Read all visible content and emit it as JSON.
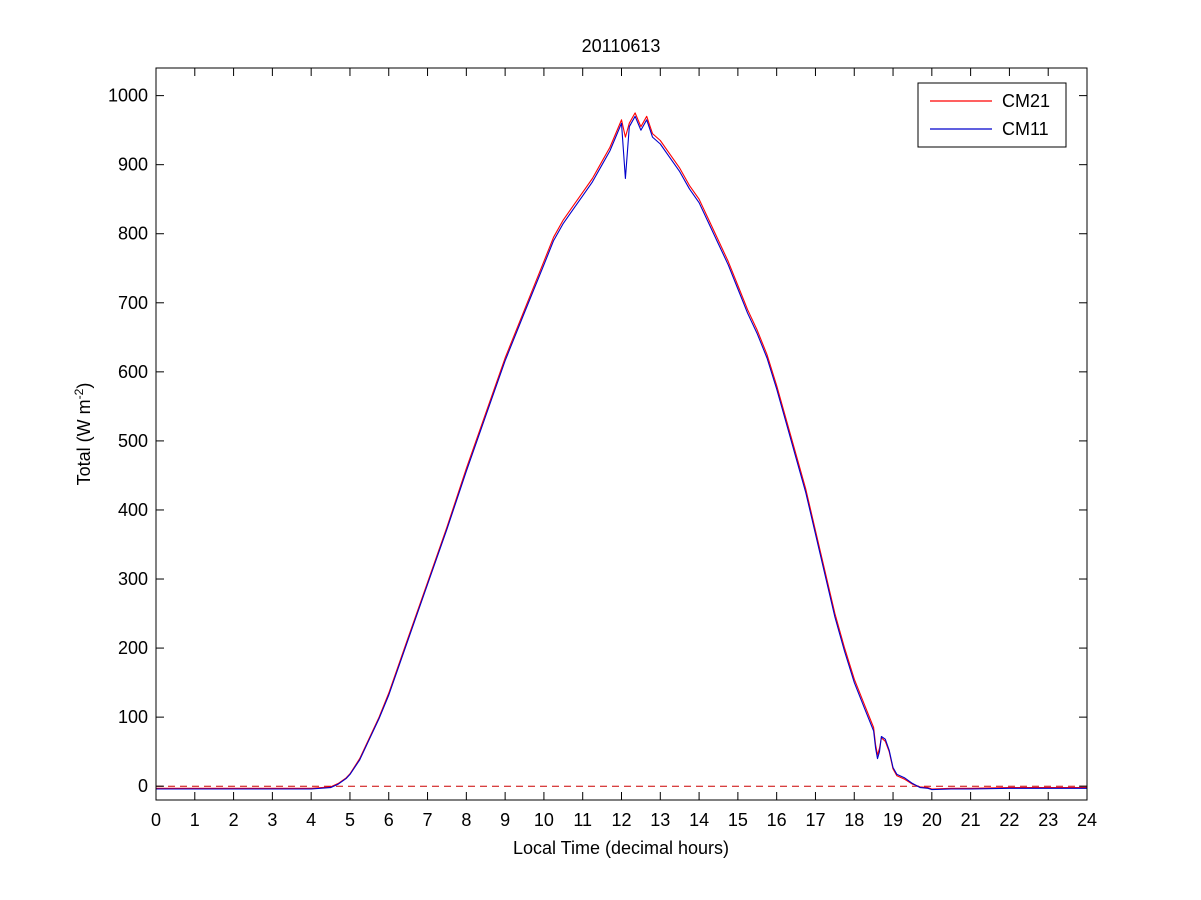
{
  "chart_data": {
    "type": "line",
    "title": "20110613",
    "xlabel": "Local Time (decimal hours)",
    "ylabel": {
      "base": "Total (W m",
      "sup": "-2",
      "close": ")"
    },
    "xlim": [
      0,
      24
    ],
    "ylim": [
      -20,
      1040
    ],
    "xticks": [
      0,
      1,
      2,
      3,
      4,
      5,
      6,
      7,
      8,
      9,
      10,
      11,
      12,
      13,
      14,
      15,
      16,
      17,
      18,
      19,
      20,
      21,
      22,
      23,
      24
    ],
    "yticks": [
      0,
      100,
      200,
      300,
      400,
      500,
      600,
      700,
      800,
      900,
      1000
    ],
    "grid": false,
    "legend_position": "top-right",
    "reference_line": {
      "y": 0,
      "style": "dashed",
      "color": "#cc0000"
    },
    "series": [
      {
        "name": "CM21",
        "color": "#ff0000",
        "x": [
          0,
          1,
          2,
          3,
          4,
          4.5,
          4.7,
          4.9,
          5,
          5.25,
          5.5,
          5.75,
          6,
          6.5,
          7,
          7.5,
          8,
          8.5,
          9,
          9.5,
          10,
          10.25,
          10.5,
          10.75,
          11,
          11.25,
          11.5,
          11.7,
          11.85,
          12,
          12.1,
          12.2,
          12.35,
          12.5,
          12.65,
          12.8,
          13,
          13.25,
          13.5,
          13.75,
          14,
          14.25,
          14.5,
          14.75,
          15,
          15.25,
          15.5,
          15.75,
          16,
          16.25,
          16.5,
          16.75,
          17,
          17.25,
          17.5,
          17.75,
          18,
          18.25,
          18.5,
          18.55,
          18.6,
          18.65,
          18.7,
          18.8,
          18.9,
          19,
          19.1,
          19.3,
          19.5,
          19.7,
          19.9,
          20,
          20.5,
          21,
          22,
          23,
          24
        ],
        "y": [
          -3,
          -3,
          -3,
          -3,
          -3,
          -1,
          4,
          12,
          18,
          40,
          70,
          100,
          135,
          215,
          295,
          375,
          460,
          540,
          620,
          690,
          760,
          795,
          820,
          840,
          860,
          880,
          905,
          925,
          945,
          965,
          940,
          960,
          975,
          955,
          970,
          945,
          935,
          915,
          895,
          870,
          850,
          820,
          790,
          760,
          725,
          690,
          660,
          625,
          580,
          530,
          480,
          430,
          370,
          310,
          250,
          200,
          155,
          120,
          85,
          60,
          45,
          55,
          70,
          65,
          50,
          25,
          15,
          10,
          3,
          -1,
          -2,
          -4,
          -3,
          -3,
          -2,
          -2,
          -2
        ]
      },
      {
        "name": "CM11",
        "color": "#0000cc",
        "x": [
          0,
          1,
          2,
          3,
          4,
          4.5,
          4.7,
          4.9,
          5,
          5.25,
          5.5,
          5.75,
          6,
          6.5,
          7,
          7.5,
          8,
          8.5,
          9,
          9.5,
          10,
          10.25,
          10.5,
          10.75,
          11,
          11.25,
          11.5,
          11.7,
          11.85,
          12,
          12.1,
          12.2,
          12.35,
          12.5,
          12.65,
          12.8,
          13,
          13.25,
          13.5,
          13.75,
          14,
          14.25,
          14.5,
          14.75,
          15,
          15.25,
          15.5,
          15.75,
          16,
          16.25,
          16.5,
          16.75,
          17,
          17.25,
          17.5,
          17.75,
          18,
          18.25,
          18.5,
          18.55,
          18.6,
          18.65,
          18.7,
          18.8,
          18.9,
          19,
          19.1,
          19.3,
          19.5,
          19.7,
          19.9,
          20,
          20.5,
          21,
          22,
          23,
          24
        ],
        "y": [
          -4,
          -4,
          -4,
          -4,
          -4,
          -2,
          3,
          11,
          17,
          38,
          68,
          98,
          132,
          212,
          292,
          372,
          456,
          536,
          616,
          686,
          755,
          790,
          815,
          835,
          855,
          875,
          900,
          920,
          940,
          960,
          880,
          955,
          970,
          950,
          965,
          940,
          930,
          910,
          890,
          865,
          845,
          815,
          785,
          755,
          720,
          685,
          655,
          620,
          575,
          525,
          475,
          425,
          365,
          305,
          245,
          195,
          150,
          115,
          80,
          55,
          40,
          50,
          72,
          68,
          52,
          27,
          17,
          12,
          4,
          -2,
          -3,
          -5,
          -4,
          -4,
          -3,
          -3,
          -3
        ]
      }
    ]
  }
}
